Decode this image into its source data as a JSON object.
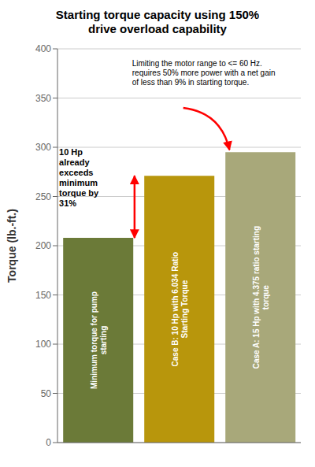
{
  "chart_data": {
    "type": "bar",
    "title": "Starting torque capacity using 150%\ndrive overload capability",
    "categories": [
      "Minimum torque for pump\nstarting",
      "Case B: 10 Hp with 6.034 Ratio\nStarting Torque",
      "Case A: 15 Hp with 4.375 ratio starting\ntorque"
    ],
    "values": [
      208,
      271,
      295
    ],
    "colors": [
      "#6b7a38",
      "#b8960c",
      "#a8a87a"
    ],
    "ylabel": "Torque (lb.-ft.)",
    "ylim": [
      0,
      400
    ],
    "yticks": [
      0,
      50,
      100,
      150,
      200,
      250,
      300,
      350,
      400
    ],
    "grid": true,
    "tick_labels": "y",
    "annotations": [
      "Limiting the motor range to <= 60 Hz.\nrequires 50% more power with a net gain\nof less than 9% in starting torque.",
      "10 Hp\nalready\nexceeds\nminimum\ntorque by\n31%"
    ]
  }
}
